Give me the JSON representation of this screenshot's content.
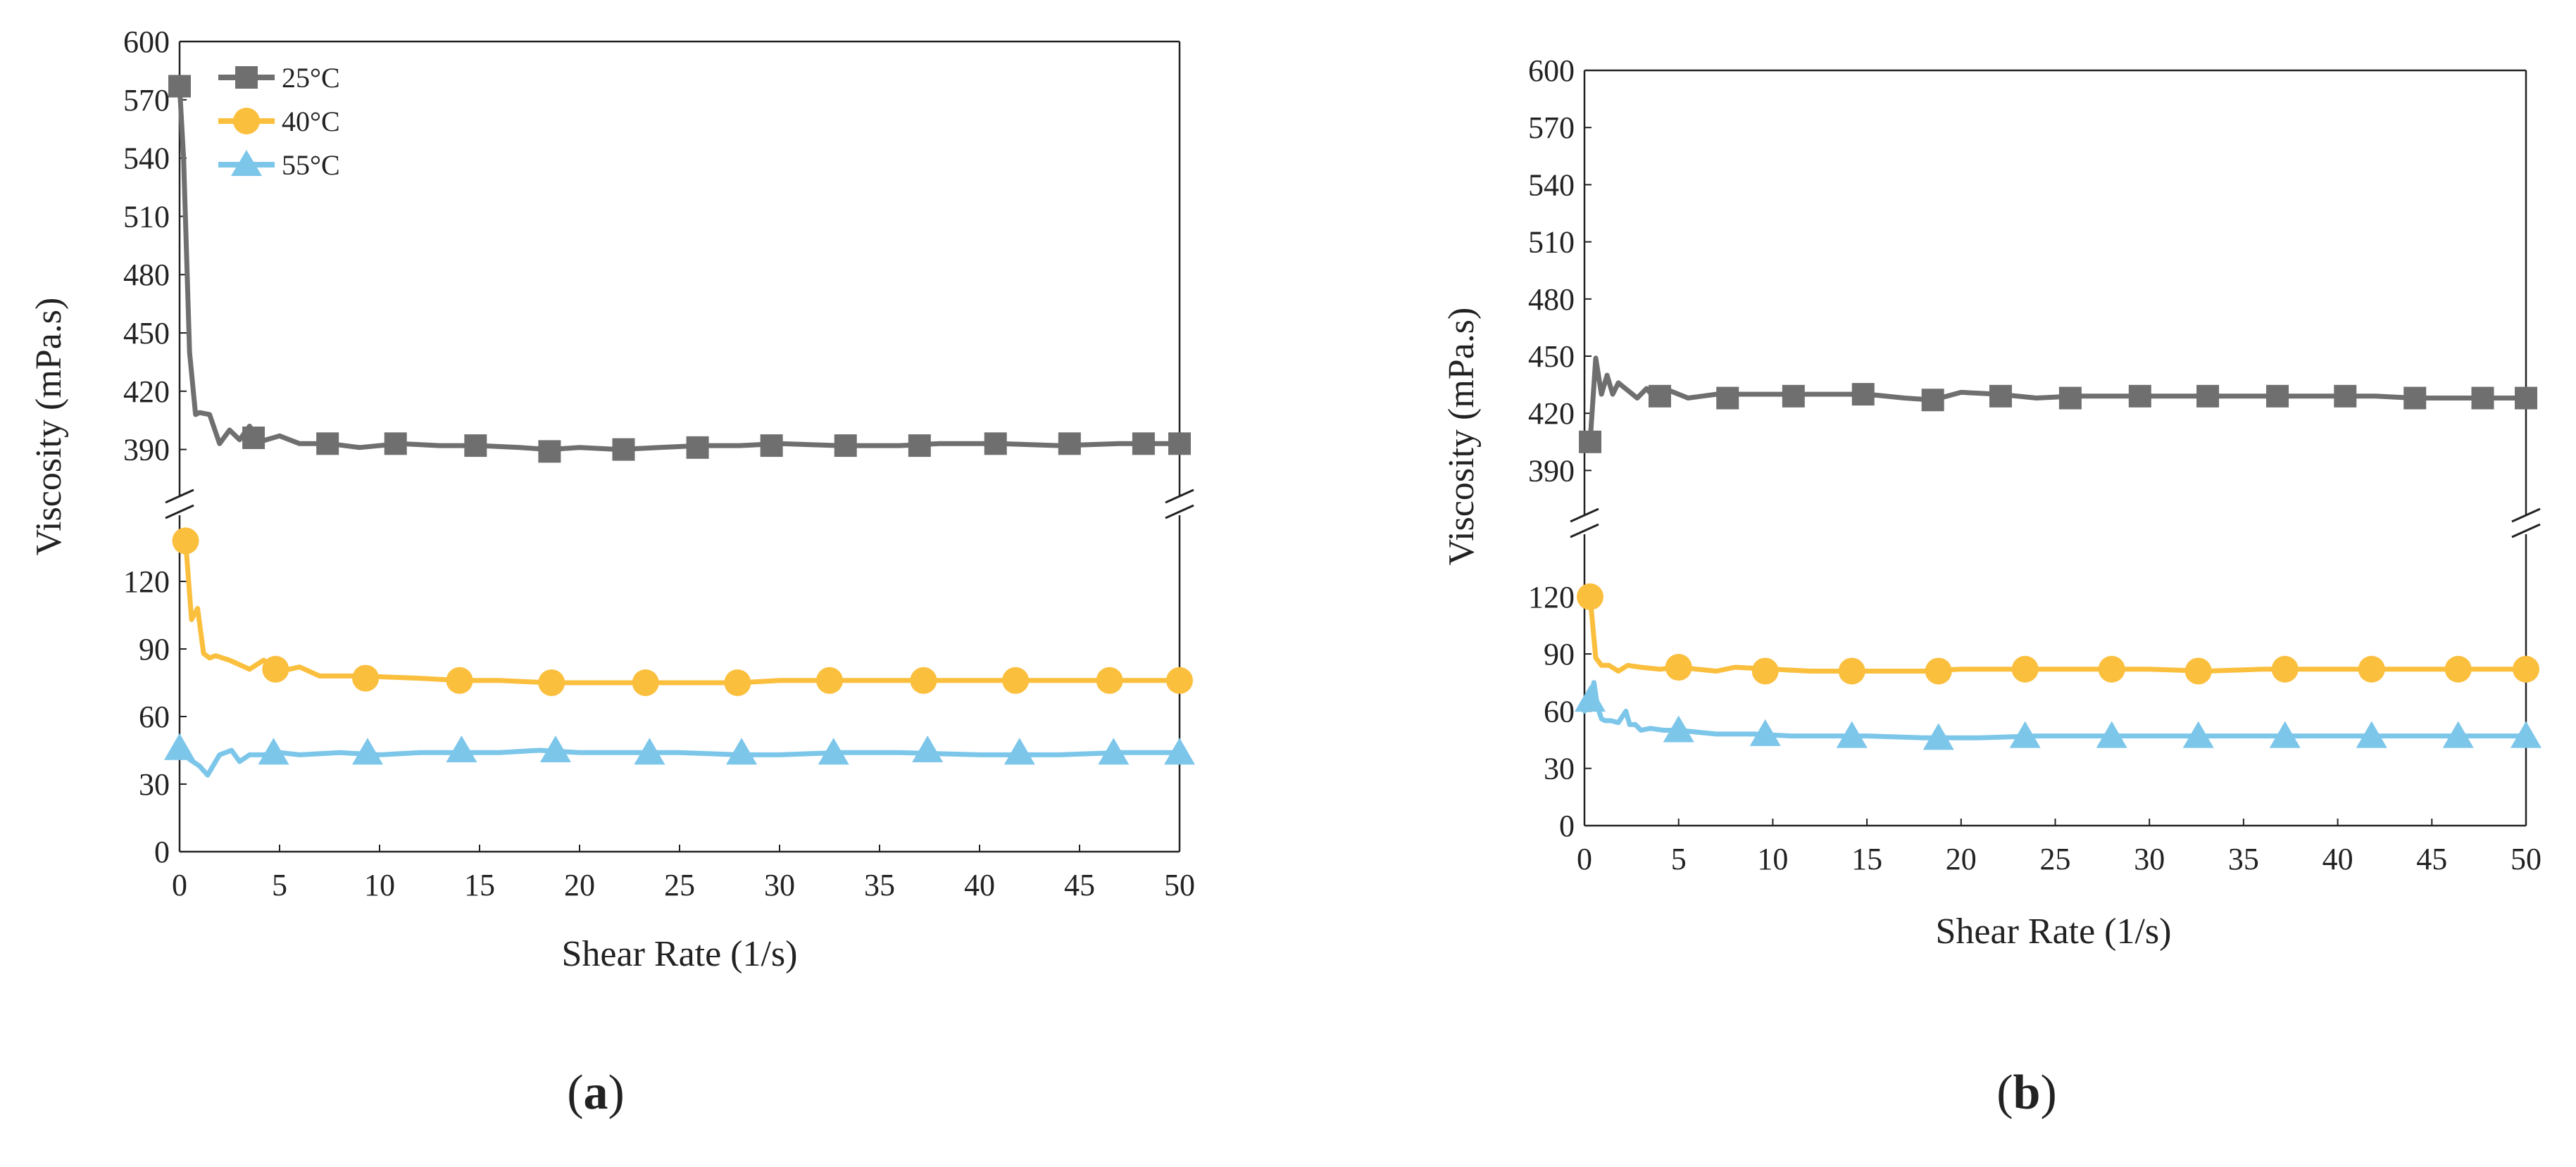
{
  "colors": {
    "c25": "#6f6f6f",
    "c40": "#fbbf3e",
    "c55": "#7cc6ea",
    "axis": "#222222"
  },
  "chart_data": [
    {
      "id": "a",
      "type": "line",
      "panel_label": "a",
      "xlabel": "Shear Rate (1/s)",
      "ylabel": "Viscosity (mPa.s)",
      "xlim": [
        0,
        50
      ],
      "xticks": [
        0,
        5,
        10,
        15,
        20,
        25,
        30,
        35,
        40,
        45,
        50
      ],
      "y_break": true,
      "y_upper": {
        "lim": [
          375,
          600
        ],
        "ticks": [
          390,
          420,
          450,
          480,
          510,
          540,
          570,
          600
        ]
      },
      "y_lower": {
        "lim": [
          0,
          145
        ],
        "ticks": [
          0,
          30,
          60,
          90,
          120
        ]
      },
      "legend": {
        "entries": [
          "25°C",
          "40°C",
          "55°C"
        ],
        "position": "top-left"
      },
      "series": [
        {
          "name": "25°C",
          "segment": "upper",
          "marker": "square",
          "color_key": "c25",
          "x": [
            0,
            0.2,
            0.5,
            0.8,
            1.0,
            1.5,
            2.0,
            2.5,
            3.0,
            3.5,
            4,
            5,
            6,
            7.5,
            9,
            11,
            13,
            15,
            17,
            18.5,
            20,
            22,
            24,
            26,
            28,
            30,
            33,
            36,
            38,
            41,
            44,
            47,
            50
          ],
          "y": [
            577,
            540,
            440,
            408,
            409,
            408,
            393,
            400,
            395,
            402,
            394,
            397,
            393,
            393,
            391,
            393,
            392,
            392,
            391,
            390,
            391,
            390,
            391,
            392,
            392,
            393,
            392,
            392,
            393,
            393,
            392,
            393,
            393
          ],
          "marker_x": [
            0,
            3.7,
            7.4,
            10.8,
            14.8,
            18.5,
            22.2,
            25.9,
            29.6,
            33.3,
            37,
            40.8,
            44.5,
            48.2,
            50
          ],
          "marker_y": [
            577,
            396,
            393,
            393,
            392,
            389,
            390,
            391,
            392,
            392,
            392,
            393,
            393,
            393,
            393
          ]
        },
        {
          "name": "40°C",
          "segment": "lower",
          "marker": "circle",
          "color_key": "c40",
          "x": [
            0.3,
            0.6,
            0.9,
            1.2,
            1.5,
            1.8,
            2.5,
            3.5,
            4.2,
            5,
            6,
            7,
            9,
            12,
            14,
            16,
            18.5,
            21,
            23.5,
            26,
            28,
            30,
            33,
            36,
            39,
            42,
            45,
            48,
            50
          ],
          "y": [
            138,
            103,
            108,
            88,
            86,
            87,
            85,
            81,
            85,
            80,
            82,
            78,
            78,
            77,
            76,
            76,
            75,
            75,
            75,
            75,
            75,
            76,
            76,
            76,
            76,
            76,
            76,
            76,
            76
          ],
          "marker_x": [
            0.3,
            4.8,
            9.3,
            14,
            18.6,
            23.3,
            27.9,
            32.5,
            37.2,
            41.8,
            46.5,
            50
          ],
          "marker_y": [
            138,
            81,
            77,
            76,
            75,
            75,
            75,
            76,
            76,
            76,
            76,
            76
          ]
        },
        {
          "name": "55°C",
          "segment": "lower",
          "marker": "triangle",
          "color_key": "c55",
          "x": [
            0,
            0.5,
            1.0,
            1.4,
            2.0,
            2.6,
            3.0,
            3.5,
            4.2,
            5,
            6,
            8,
            10,
            12,
            14,
            16,
            18,
            20,
            22,
            25,
            28,
            30,
            33,
            36,
            40,
            44,
            47,
            50
          ],
          "y": [
            46,
            41,
            38,
            34,
            43,
            45,
            40,
            43,
            43,
            44,
            43,
            44,
            43,
            44,
            44,
            44,
            45,
            44,
            44,
            44,
            43,
            43,
            44,
            44,
            43,
            43,
            44,
            44
          ],
          "marker_x": [
            0,
            4.7,
            9.4,
            14.1,
            18.8,
            23.5,
            28.1,
            32.7,
            37.4,
            42,
            46.7,
            50
          ],
          "marker_y": [
            46,
            44,
            44,
            45,
            45,
            44,
            44,
            44,
            45,
            44,
            44,
            44
          ]
        }
      ]
    },
    {
      "id": "b",
      "type": "line",
      "panel_label": "b",
      "xlabel": "Shear Rate (1/s)",
      "ylabel": "Viscosity (mPa.s)",
      "xlim": [
        0,
        50
      ],
      "xticks": [
        0,
        5,
        10,
        15,
        20,
        25,
        30,
        35,
        40,
        45,
        50
      ],
      "y_break": true,
      "y_upper": {
        "lim": [
          375,
          600
        ],
        "ticks": [
          390,
          420,
          450,
          480,
          510,
          540,
          570,
          600
        ]
      },
      "y_lower": {
        "lim": [
          0,
          145
        ],
        "ticks": [
          0,
          30,
          60,
          90,
          120
        ]
      },
      "legend": null,
      "series": [
        {
          "name": "25°C",
          "segment": "upper",
          "marker": "square",
          "color_key": "c25",
          "x": [
            0.3,
            0.6,
            0.9,
            1.2,
            1.5,
            1.8,
            2.3,
            2.8,
            3.3,
            3.8,
            4.5,
            5.5,
            7,
            9,
            11,
            13,
            15,
            17,
            18.5,
            20,
            22,
            24,
            26,
            28,
            30,
            32,
            34,
            36,
            38,
            40,
            42,
            44,
            46,
            48,
            50
          ],
          "y": [
            405,
            449,
            430,
            440,
            430,
            436,
            432,
            428,
            433,
            427,
            432,
            428,
            430,
            430,
            430,
            430,
            430,
            428,
            427,
            431,
            430,
            428,
            429,
            429,
            429,
            429,
            429,
            429,
            429,
            429,
            429,
            428,
            428,
            428,
            428
          ],
          "marker_x": [
            0.3,
            4,
            7.6,
            11.1,
            14.8,
            18.5,
            22.1,
            25.8,
            29.5,
            33.1,
            36.8,
            40.4,
            44.1,
            47.7,
            50
          ],
          "marker_y": [
            405,
            429,
            428,
            429,
            430,
            427,
            429,
            428,
            429,
            429,
            429,
            429,
            428,
            428,
            428
          ]
        },
        {
          "name": "40°C",
          "segment": "lower",
          "marker": "circle",
          "color_key": "c40",
          "x": [
            0.3,
            0.6,
            0.9,
            1.3,
            1.8,
            2.3,
            3,
            4,
            5,
            6,
            7,
            8,
            10,
            12,
            14,
            16,
            18,
            20,
            23,
            26,
            28,
            30,
            33,
            36,
            39,
            42,
            45,
            48,
            50
          ],
          "y": [
            120,
            88,
            84,
            84,
            81,
            84,
            83,
            82,
            83,
            82,
            81,
            83,
            82,
            81,
            81,
            81,
            81,
            82,
            82,
            82,
            82,
            82,
            81,
            82,
            82,
            82,
            82,
            82,
            82
          ],
          "marker_x": [
            0.3,
            5,
            9.6,
            14.2,
            18.8,
            23.4,
            28,
            32.6,
            37.2,
            41.8,
            46.4,
            50
          ],
          "marker_y": [
            120,
            83,
            81,
            81,
            81,
            82,
            82,
            81,
            82,
            82,
            82,
            82
          ]
        },
        {
          "name": "55°C",
          "segment": "lower",
          "marker": "triangle",
          "color_key": "c55",
          "x": [
            0,
            0.3,
            0.5,
            0.7,
            0.9,
            1.1,
            1.4,
            1.8,
            2.2,
            2.4,
            2.7,
            3,
            3.5,
            4.2,
            5,
            6,
            7,
            9,
            11,
            13,
            15,
            18,
            21,
            24,
            27,
            30,
            33,
            36,
            40,
            44,
            47,
            50
          ],
          "y": [
            60,
            66,
            75,
            62,
            56,
            55,
            55,
            54,
            60,
            53,
            53,
            50,
            51,
            50,
            50,
            49,
            48,
            48,
            47,
            47,
            47,
            46,
            46,
            47,
            47,
            47,
            47,
            47,
            47,
            47,
            47,
            47
          ],
          "marker_x": [
            0.3,
            5,
            9.6,
            14.2,
            18.8,
            23.4,
            28,
            32.6,
            37.2,
            41.8,
            46.4,
            50
          ],
          "marker_y": [
            66,
            50,
            48,
            47,
            46,
            47,
            47,
            47,
            47,
            47,
            47,
            47
          ]
        }
      ]
    }
  ]
}
